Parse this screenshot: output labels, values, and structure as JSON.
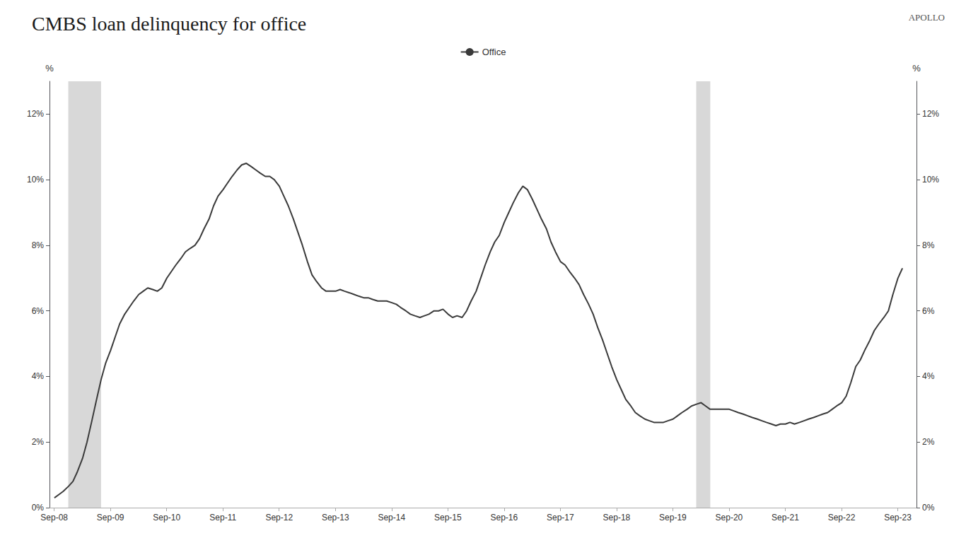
{
  "chart_data": {
    "type": "line",
    "title": "CMBS loan delinquency for office",
    "annotations": [
      {
        "text": "APOLLO"
      }
    ],
    "ylabel": "%",
    "y2label": "%",
    "legend": "top",
    "grid": false,
    "background_color": "#ffffff",
    "band_color": "#c8c8c8",
    "bands": [
      {
        "start": 2008.917,
        "end": 2009.5
      },
      {
        "start": 2020.083,
        "end": 2020.333
      }
    ],
    "xlim": [
      2008.583,
      2024.0
    ],
    "xticks": [
      {
        "value": 2008.6666666666667,
        "label": "Sep-08"
      },
      {
        "value": 2009.6666666666667,
        "label": "Sep-09"
      },
      {
        "value": 2010.6666666666667,
        "label": "Sep-10"
      },
      {
        "value": 2011.6666666666667,
        "label": "Sep-11"
      },
      {
        "value": 2012.6666666666667,
        "label": "Sep-12"
      },
      {
        "value": 2013.6666666666667,
        "label": "Sep-13"
      },
      {
        "value": 2014.6666666666667,
        "label": "Sep-14"
      },
      {
        "value": 2015.6666666666667,
        "label": "Sep-15"
      },
      {
        "value": 2016.6666666666667,
        "label": "Sep-16"
      },
      {
        "value": 2017.6666666666667,
        "label": "Sep-17"
      },
      {
        "value": 2018.6666666666667,
        "label": "Sep-18"
      },
      {
        "value": 2019.6666666666667,
        "label": "Sep-19"
      },
      {
        "value": 2020.6666666666667,
        "label": "Sep-20"
      },
      {
        "value": 2021.6666666666667,
        "label": "Sep-21"
      },
      {
        "value": 2022.6666666666667,
        "label": "Sep-22"
      },
      {
        "value": 2023.6666666666667,
        "label": "Sep-23"
      }
    ],
    "ylim": [
      0,
      13
    ],
    "yticks": [
      {
        "value": 0,
        "label": "0%"
      },
      {
        "value": 2,
        "label": "2%"
      },
      {
        "value": 4,
        "label": "4%"
      },
      {
        "value": 6,
        "label": "6%"
      },
      {
        "value": 8,
        "label": "8%"
      },
      {
        "value": 10,
        "label": "10%"
      },
      {
        "value": 12,
        "label": "12%"
      }
    ],
    "y2lim": [
      0,
      13
    ],
    "y2ticks": [
      {
        "value": 0,
        "label": "0%"
      },
      {
        "value": 2,
        "label": "2%"
      },
      {
        "value": 4,
        "label": "4%"
      },
      {
        "value": 6,
        "label": "6%"
      },
      {
        "value": 8,
        "label": "8%"
      },
      {
        "value": 10,
        "label": "10%"
      },
      {
        "value": 12,
        "label": "12%"
      }
    ],
    "x": [
      2008.67,
      2008.75,
      2008.83,
      2008.92,
      2009.0,
      2009.08,
      2009.17,
      2009.25,
      2009.33,
      2009.42,
      2009.5,
      2009.58,
      2009.67,
      2009.75,
      2009.83,
      2009.92,
      2010.0,
      2010.08,
      2010.17,
      2010.25,
      2010.33,
      2010.42,
      2010.5,
      2010.58,
      2010.67,
      2010.75,
      2010.83,
      2010.92,
      2011.0,
      2011.08,
      2011.17,
      2011.25,
      2011.33,
      2011.42,
      2011.5,
      2011.58,
      2011.67,
      2011.75,
      2011.83,
      2011.92,
      2012.0,
      2012.08,
      2012.17,
      2012.25,
      2012.33,
      2012.42,
      2012.5,
      2012.58,
      2012.67,
      2012.75,
      2012.83,
      2012.92,
      2013.0,
      2013.08,
      2013.17,
      2013.25,
      2013.33,
      2013.42,
      2013.5,
      2013.58,
      2013.67,
      2013.75,
      2013.83,
      2013.92,
      2014.0,
      2014.08,
      2014.17,
      2014.25,
      2014.33,
      2014.42,
      2014.5,
      2014.58,
      2014.67,
      2014.75,
      2014.83,
      2014.92,
      2015.0,
      2015.08,
      2015.17,
      2015.25,
      2015.33,
      2015.42,
      2015.5,
      2015.58,
      2015.67,
      2015.75,
      2015.83,
      2015.92,
      2016.0,
      2016.08,
      2016.17,
      2016.25,
      2016.33,
      2016.42,
      2016.5,
      2016.58,
      2016.67,
      2016.75,
      2016.83,
      2016.92,
      2017.0,
      2017.08,
      2017.17,
      2017.25,
      2017.33,
      2017.42,
      2017.5,
      2017.58,
      2017.67,
      2017.75,
      2017.83,
      2017.92,
      2018.0,
      2018.08,
      2018.17,
      2018.25,
      2018.33,
      2018.42,
      2018.5,
      2018.58,
      2018.67,
      2018.75,
      2018.83,
      2018.92,
      2019.0,
      2019.08,
      2019.17,
      2019.25,
      2019.33,
      2019.42,
      2019.5,
      2019.58,
      2019.67,
      2019.75,
      2019.83,
      2019.92,
      2020.0,
      2020.08,
      2020.17,
      2020.25,
      2020.33,
      2020.42,
      2020.5,
      2020.58,
      2020.67,
      2020.75,
      2020.83,
      2020.92,
      2021.0,
      2021.08,
      2021.17,
      2021.25,
      2021.33,
      2021.42,
      2021.5,
      2021.58,
      2021.67,
      2021.75,
      2021.83,
      2021.92,
      2022.0,
      2022.08,
      2022.17,
      2022.25,
      2022.33,
      2022.42,
      2022.5,
      2022.58,
      2022.67,
      2022.75,
      2022.83,
      2022.92,
      2023.0,
      2023.08,
      2023.17,
      2023.25,
      2023.33,
      2023.42,
      2023.5,
      2023.58,
      2023.67,
      2023.75
    ],
    "series": [
      {
        "name": "Office",
        "color": "#3a3a3a",
        "values": [
          0.3,
          0.4,
          0.5,
          0.65,
          0.8,
          1.1,
          1.5,
          2.0,
          2.6,
          3.3,
          3.9,
          4.4,
          4.8,
          5.2,
          5.6,
          5.9,
          6.1,
          6.3,
          6.5,
          6.6,
          6.7,
          6.65,
          6.6,
          6.7,
          7.0,
          7.2,
          7.4,
          7.6,
          7.8,
          7.9,
          8.0,
          8.2,
          8.5,
          8.8,
          9.2,
          9.5,
          9.7,
          9.9,
          10.1,
          10.3,
          10.45,
          10.5,
          10.4,
          10.3,
          10.2,
          10.1,
          10.1,
          10.0,
          9.8,
          9.5,
          9.2,
          8.8,
          8.4,
          8.0,
          7.5,
          7.1,
          6.9,
          6.7,
          6.6,
          6.6,
          6.6,
          6.65,
          6.6,
          6.55,
          6.5,
          6.45,
          6.4,
          6.4,
          6.35,
          6.3,
          6.3,
          6.3,
          6.25,
          6.2,
          6.1,
          6.0,
          5.9,
          5.85,
          5.8,
          5.85,
          5.9,
          6.0,
          6.0,
          6.05,
          5.9,
          5.8,
          5.85,
          5.8,
          6.0,
          6.3,
          6.6,
          7.0,
          7.4,
          7.8,
          8.1,
          8.3,
          8.7,
          9.0,
          9.3,
          9.6,
          9.8,
          9.7,
          9.4,
          9.1,
          8.8,
          8.5,
          8.1,
          7.8,
          7.5,
          7.4,
          7.2,
          7.0,
          6.8,
          6.5,
          6.2,
          5.9,
          5.5,
          5.1,
          4.7,
          4.3,
          3.9,
          3.6,
          3.3,
          3.1,
          2.9,
          2.8,
          2.7,
          2.65,
          2.6,
          2.6,
          2.6,
          2.65,
          2.7,
          2.8,
          2.9,
          3.0,
          3.1,
          3.15,
          3.2,
          3.1,
          3.0,
          3.0,
          3.0,
          3.0,
          3.0,
          2.95,
          2.9,
          2.85,
          2.8,
          2.75,
          2.7,
          2.65,
          2.6,
          2.55,
          2.5,
          2.55,
          2.55,
          2.6,
          2.55,
          2.6,
          2.65,
          2.7,
          2.75,
          2.8,
          2.85,
          2.9,
          3.0,
          3.1,
          3.2,
          3.4,
          3.8,
          4.3,
          4.5,
          4.8,
          5.1,
          5.4,
          5.6,
          5.8,
          6.0,
          6.5,
          7.0,
          7.3
        ]
      }
    ]
  }
}
